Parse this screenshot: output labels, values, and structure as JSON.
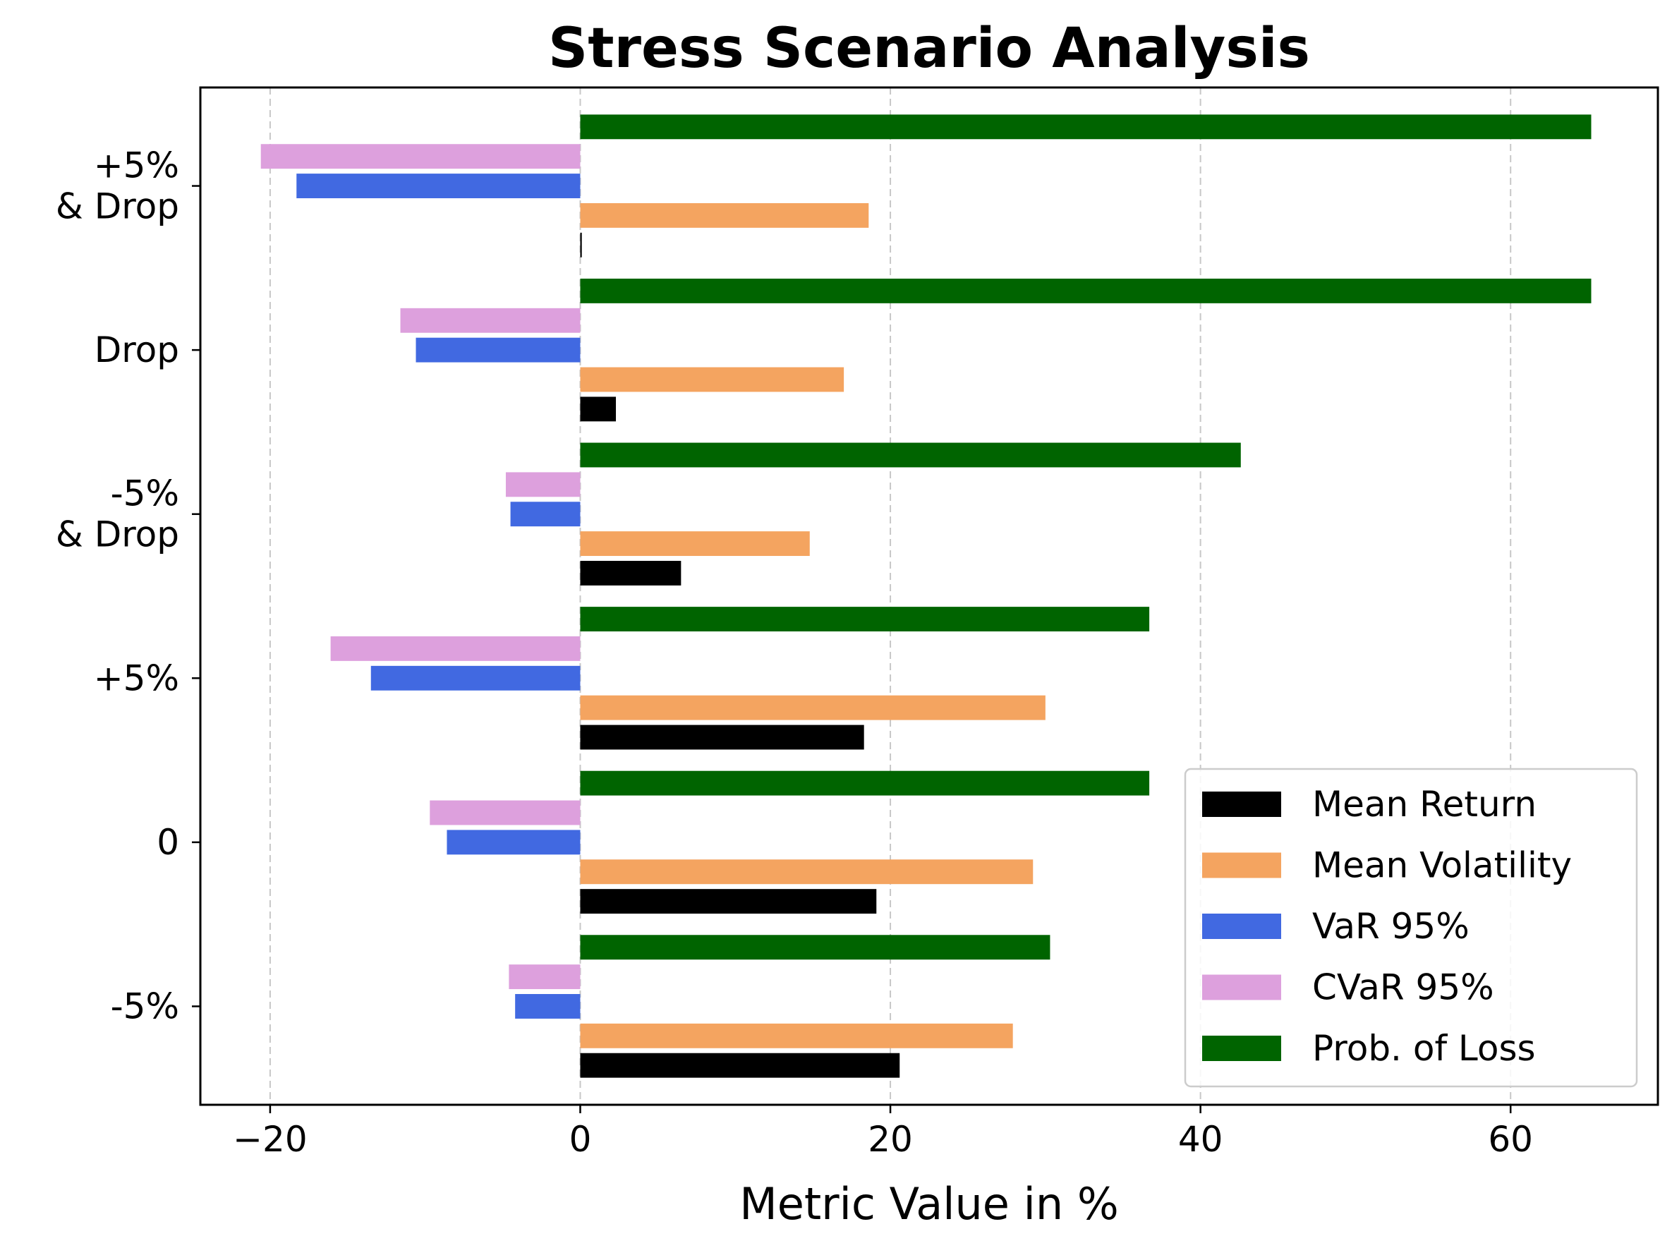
{
  "chart_data": {
    "type": "bar",
    "orientation": "horizontal",
    "title": "Stress Scenario Analysis",
    "xlabel": "Metric Value in %",
    "ylabel": "",
    "xlim": [
      -24.5,
      69.5
    ],
    "xticks": [
      -20,
      0,
      20,
      40,
      60
    ],
    "xtick_labels": [
      "−20",
      "0",
      "20",
      "40",
      "60"
    ],
    "grid": "x-dashed",
    "legend_position": "lower-right",
    "categories": [
      [
        "-5%"
      ],
      [
        "0"
      ],
      [
        "+5%"
      ],
      [
        "-5%",
        "& Drop"
      ],
      [
        "Drop"
      ],
      [
        "+5%",
        "& Drop"
      ]
    ],
    "series": [
      {
        "name": "Mean Return",
        "color": "#000000",
        "values": [
          20.6,
          19.1,
          18.3,
          6.5,
          2.3,
          0.1
        ]
      },
      {
        "name": "Mean Volatility",
        "color": "#f4a460",
        "values": [
          27.9,
          29.2,
          30.0,
          14.8,
          17.0,
          18.6
        ]
      },
      {
        "name": "VaR 95%",
        "color": "#4169e1",
        "values": [
          -4.2,
          -8.6,
          -13.5,
          -4.5,
          -10.6,
          -18.3
        ]
      },
      {
        "name": "CVaR 95%",
        "color": "#dda0dd",
        "values": [
          -4.6,
          -9.7,
          -16.1,
          -4.8,
          -11.6,
          -20.6
        ]
      },
      {
        "name": "Prob. of Loss",
        "color": "#006400",
        "values": [
          30.3,
          36.7,
          36.7,
          42.6,
          65.2,
          65.2
        ]
      }
    ]
  }
}
